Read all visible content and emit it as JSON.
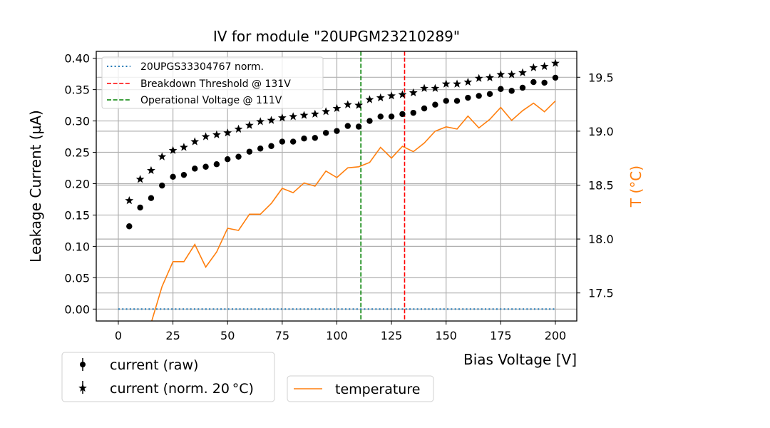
{
  "chart_data": {
    "type": "scatter",
    "title": "IV for module \"20UPGM23210289\"",
    "xlabel": "Bias Voltage [V]",
    "ylabel": "Leakage Current (µA)",
    "y2label": "T ($^\\circ$C)",
    "y2label_display": "T (°C)",
    "xlim": [
      -10.1,
      209.8
    ],
    "ylim": [
      -0.019,
      0.411
    ],
    "y2lim": [
      17.24,
      19.74
    ],
    "xticks": [
      0,
      25,
      50,
      75,
      100,
      125,
      150,
      175,
      200
    ],
    "yticks": [
      0.0,
      0.05,
      0.1,
      0.15,
      0.2,
      0.25,
      0.3,
      0.35,
      0.4
    ],
    "ytick_labels": [
      "0.00",
      "0.05",
      "0.10",
      "0.15",
      "0.20",
      "0.25",
      "0.30",
      "0.35",
      "0.40"
    ],
    "y2ticks": [
      17.5,
      18.0,
      18.5,
      19.0,
      19.5
    ],
    "y2tick_labels": [
      "17.5",
      "18.0",
      "18.5",
      "19.0",
      "19.5"
    ],
    "grid": true,
    "colors": {
      "reference": "#1f77b4",
      "breakdown": "#ff0000",
      "operational": "#008000",
      "temperature": "#ff7f0e",
      "current": "#000000",
      "grid": "#b0b0b0"
    },
    "x": [
      5,
      10,
      15,
      20,
      25,
      30,
      35,
      40,
      45,
      50,
      55,
      60,
      65,
      70,
      75,
      80,
      85,
      90,
      95,
      100,
      105,
      110,
      115,
      120,
      125,
      130,
      135,
      140,
      145,
      150,
      155,
      160,
      165,
      170,
      175,
      180,
      185,
      190,
      195,
      200
    ],
    "series": [
      {
        "name": "current (raw)",
        "axis": "left",
        "marker": "circle",
        "values": [
          0.132,
          0.162,
          0.177,
          0.197,
          0.211,
          0.214,
          0.224,
          0.227,
          0.231,
          0.239,
          0.243,
          0.251,
          0.256,
          0.26,
          0.267,
          0.267,
          0.272,
          0.273,
          0.281,
          0.284,
          0.292,
          0.291,
          0.3,
          0.307,
          0.307,
          0.311,
          0.313,
          0.32,
          0.326,
          0.332,
          0.332,
          0.337,
          0.34,
          0.343,
          0.351,
          0.348,
          0.353,
          0.362,
          0.361,
          0.369
        ]
      },
      {
        "name": "current (norm. 20 °C)",
        "axis": "left",
        "marker": "star",
        "values": [
          0.173,
          0.207,
          0.221,
          0.243,
          0.253,
          0.258,
          0.267,
          0.275,
          0.278,
          0.281,
          0.287,
          0.293,
          0.299,
          0.301,
          0.305,
          0.307,
          0.309,
          0.311,
          0.315,
          0.32,
          0.326,
          0.325,
          0.334,
          0.337,
          0.34,
          0.342,
          0.345,
          0.352,
          0.352,
          0.359,
          0.359,
          0.362,
          0.368,
          0.369,
          0.374,
          0.374,
          0.377,
          0.385,
          0.387,
          0.392
        ]
      },
      {
        "name": "temperature",
        "axis": "right",
        "marker": "line",
        "x": [
          10,
          15,
          20,
          25,
          30,
          35,
          40,
          45,
          50,
          55,
          60,
          65,
          70,
          75,
          80,
          85,
          90,
          95,
          100,
          105,
          110,
          115,
          120,
          125,
          130,
          135,
          140,
          145,
          150,
          155,
          160,
          165,
          170,
          175,
          180,
          185,
          190,
          195,
          200
        ],
        "values": [
          16.95,
          17.22,
          17.56,
          17.79,
          17.79,
          17.95,
          17.74,
          17.88,
          18.1,
          18.08,
          18.23,
          18.23,
          18.33,
          18.47,
          18.43,
          18.52,
          18.49,
          18.63,
          18.57,
          18.66,
          18.67,
          18.71,
          18.85,
          18.75,
          18.86,
          18.81,
          18.89,
          19.0,
          19.04,
          19.02,
          19.14,
          19.03,
          19.11,
          19.22,
          19.1,
          19.19,
          19.26,
          19.18,
          19.28
        ]
      },
      {
        "name": "20UPGS33304767 norm.",
        "axis": "left",
        "marker": "dotted-line",
        "x": [
          0,
          200
        ],
        "values": [
          0.0,
          0.0
        ]
      }
    ],
    "vlines": [
      {
        "name": "Breakdown Threshold @ 131V",
        "x": 131,
        "style": "dashed",
        "color": "#ff0000"
      },
      {
        "name": "Operational Voltage @ 111V",
        "x": 111,
        "style": "dashed",
        "color": "#008000"
      }
    ],
    "legends": [
      {
        "placement": "top-left inside",
        "entries": [
          "20UPGS33304767 norm.",
          "Breakdown Threshold @ 131V",
          "Operational Voltage @ 111V"
        ]
      },
      {
        "placement": "below-left",
        "entries": [
          "current (raw)",
          "current (norm. 20 °C)"
        ]
      },
      {
        "placement": "below-center",
        "entries": [
          "temperature"
        ]
      }
    ]
  }
}
